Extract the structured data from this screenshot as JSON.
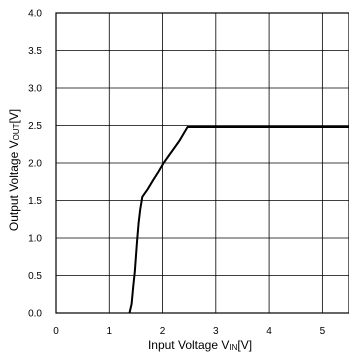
{
  "chart_data": {
    "type": "line",
    "title": "",
    "xlabel": {
      "main": "Input Voltage V",
      "subscript": "IN",
      "unit": "[V]"
    },
    "ylabel": {
      "main": "Output Voltage V",
      "subscript": "OUT",
      "unit": "[V]"
    },
    "xlim": [
      0,
      5.5
    ],
    "ylim": [
      0,
      4.0
    ],
    "xticks": [
      0,
      1,
      2,
      3,
      4,
      5
    ],
    "xtick_labels": [
      "0",
      "1",
      "2",
      "3",
      "4",
      "5"
    ],
    "yticks": [
      0,
      0.5,
      1.0,
      1.5,
      2.0,
      2.5,
      3.0,
      3.5,
      4.0
    ],
    "ytick_labels": [
      "0.0",
      "0.5",
      "1.0",
      "1.5",
      "2.0",
      "2.5",
      "3.0",
      "3.5",
      "4.0"
    ],
    "grid": true,
    "series": [
      {
        "color": "#000000",
        "points": [
          [
            1.38,
            0.0
          ],
          [
            1.42,
            0.12
          ],
          [
            1.45,
            0.35
          ],
          [
            1.48,
            0.55
          ],
          [
            1.52,
            0.95
          ],
          [
            1.55,
            1.2
          ],
          [
            1.58,
            1.38
          ],
          [
            1.62,
            1.55
          ],
          [
            1.72,
            1.65
          ],
          [
            1.82,
            1.77
          ],
          [
            1.92,
            1.88
          ],
          [
            2.02,
            2.0
          ],
          [
            2.12,
            2.1
          ],
          [
            2.22,
            2.2
          ],
          [
            2.32,
            2.3
          ],
          [
            2.42,
            2.42
          ],
          [
            2.47,
            2.48
          ],
          [
            3.0,
            2.48
          ],
          [
            4.0,
            2.48
          ],
          [
            5.0,
            2.48
          ],
          [
            5.5,
            2.48
          ]
        ]
      }
    ]
  }
}
